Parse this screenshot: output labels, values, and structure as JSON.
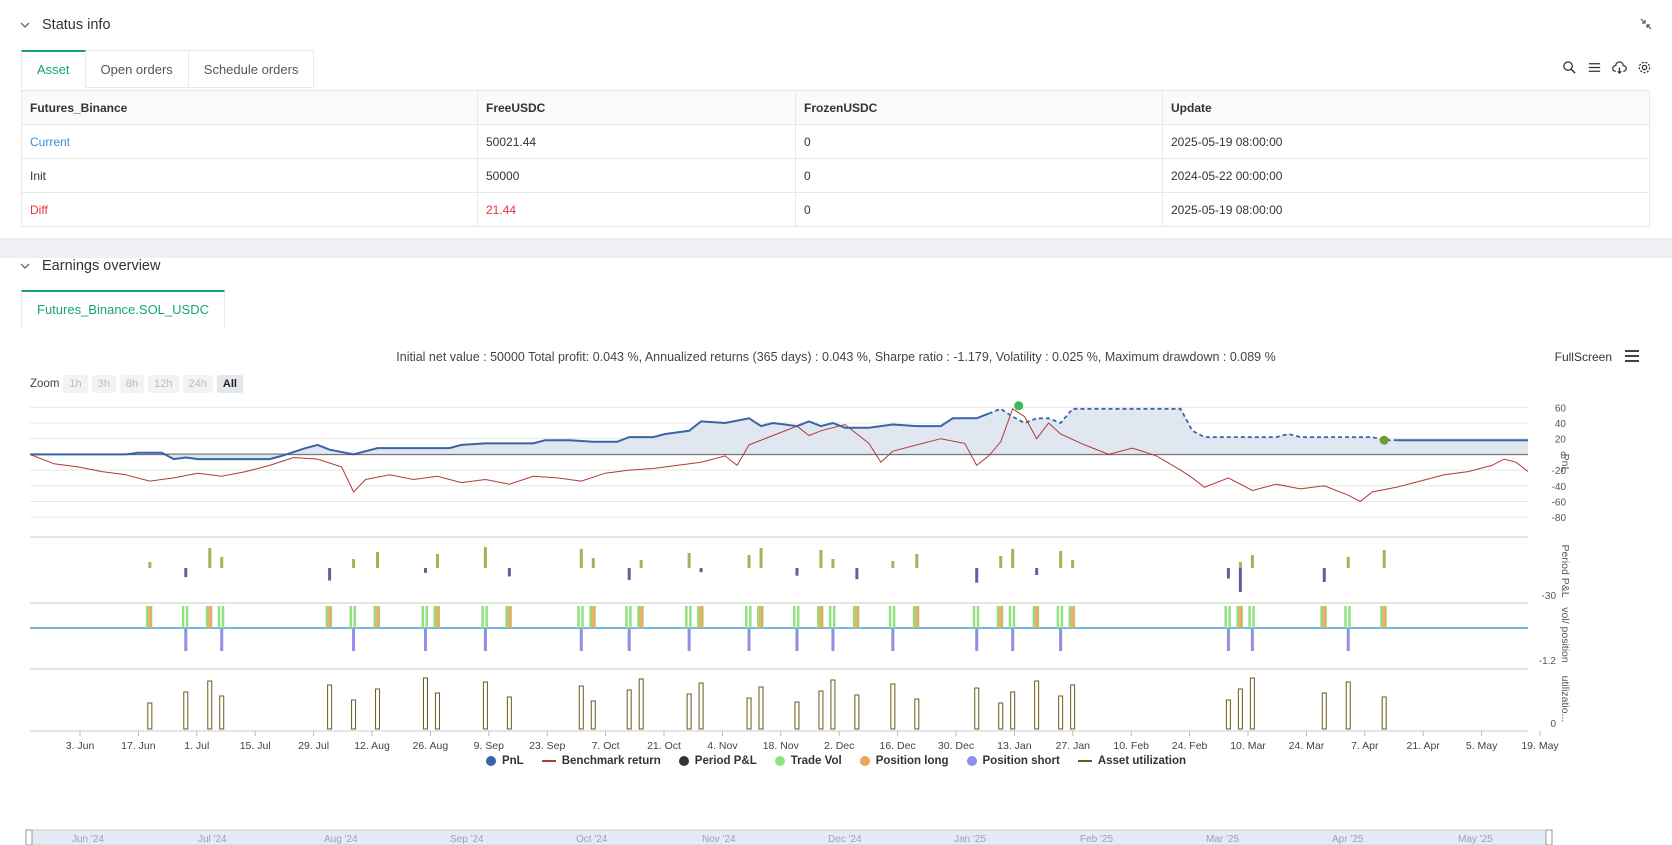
{
  "status_panel": {
    "title": "Status info",
    "tabs": [
      "Asset",
      "Open orders",
      "Schedule orders"
    ],
    "columns": [
      "Futures_Binance",
      "FreeUSDC",
      "FrozenUSDC",
      "Update"
    ],
    "rows": [
      {
        "name": "Current",
        "free": "50021.44",
        "frozen": "0",
        "update": "2025-05-19 08:00:00"
      },
      {
        "name": "Init",
        "free": "50000",
        "frozen": "0",
        "update": "2024-05-22 00:00:00"
      },
      {
        "name": "Diff",
        "free": "21.44",
        "frozen": "0",
        "update": "2025-05-19 08:00:00"
      }
    ]
  },
  "earnings_panel": {
    "title": "Earnings overview",
    "tab": "Futures_Binance.SOL_USDC",
    "summary": "Initial net value : 50000 Total profit: 0.043 %, Annualized returns (365 days) : 0.043 %, Sharpe ratio : -1.179, Volatility : 0.025 %, Maximum drawdown : 0.089 %",
    "fullscreen": "FullScreen",
    "zoom_label": "Zoom",
    "zoom_options": [
      "1h",
      "3h",
      "8h",
      "12h",
      "24h",
      "All"
    ],
    "legend": [
      "PnL",
      "Benchmark return",
      "Period P&L",
      "Trade Vol",
      "Position long",
      "Position short",
      "Asset utilization"
    ]
  },
  "chart_data": {
    "type": "line",
    "title": "Earnings overview",
    "x_ticks": [
      "3. Jun",
      "17. Jun",
      "1. Jul",
      "15. Jul",
      "29. Jul",
      "12. Aug",
      "26. Aug",
      "9. Sep",
      "23. Sep",
      "7. Oct",
      "21. Oct",
      "4. Nov",
      "18. Nov",
      "2. Dec",
      "16. Dec",
      "30. Dec",
      "13. Jan",
      "27. Jan",
      "10. Feb",
      "24. Feb",
      "10. Mar",
      "24. Mar",
      "7. Apr",
      "21. Apr",
      "5. May",
      "19. May"
    ],
    "navigator_ticks": [
      "Jun '24",
      "Jul '24",
      "Aug '24",
      "Sep '24",
      "Oct '24",
      "Nov '24",
      "Dec '24",
      "Jan '25",
      "Feb '25",
      "Mar '25",
      "Apr '25",
      "May '25"
    ],
    "pnl_axis": {
      "label": "PnL",
      "ticks": [
        "60",
        "40",
        "20",
        "0",
        "-20",
        "-40",
        "-60",
        "-80"
      ],
      "ylim": [
        -90,
        68
      ]
    },
    "period_axis": {
      "label": "Period P&L",
      "ticks": [
        "-30"
      ]
    },
    "vol_axis": {
      "label": "vol/ position",
      "ticks": [
        "-1.2"
      ]
    },
    "util_axis": {
      "label": "utilizatio...",
      "ticks": [
        "0"
      ]
    },
    "series": [
      {
        "name": "PnL",
        "color": "#3a64a6",
        "points": [
          [
            0,
            0
          ],
          [
            8,
            0
          ],
          [
            9,
            2
          ],
          [
            11,
            2
          ],
          [
            12,
            -6
          ],
          [
            13,
            -4
          ],
          [
            14,
            -6
          ],
          [
            20,
            -6
          ],
          [
            21,
            -2
          ],
          [
            23,
            8
          ],
          [
            24,
            12
          ],
          [
            25,
            6
          ],
          [
            27,
            0
          ],
          [
            28,
            4
          ],
          [
            29,
            8
          ],
          [
            35,
            8
          ],
          [
            36,
            12
          ],
          [
            38,
            14
          ],
          [
            42,
            14
          ],
          [
            43,
            18
          ],
          [
            45,
            18
          ],
          [
            47,
            16
          ],
          [
            49,
            16
          ],
          [
            50,
            22
          ],
          [
            52,
            22
          ],
          [
            53,
            26
          ],
          [
            55,
            30
          ],
          [
            56,
            42
          ],
          [
            58,
            40
          ],
          [
            60,
            46
          ],
          [
            61,
            36
          ],
          [
            62,
            40
          ],
          [
            64,
            36
          ],
          [
            65,
            42
          ],
          [
            66,
            36
          ],
          [
            67,
            40
          ],
          [
            68,
            34
          ],
          [
            70,
            34
          ],
          [
            72,
            38
          ],
          [
            74,
            36
          ],
          [
            76,
            36
          ],
          [
            77,
            46
          ],
          [
            79,
            46
          ],
          [
            80,
            52
          ]
        ]
      },
      {
        "name": "PnL (dashed)",
        "color": "#3a64a6",
        "points": [
          [
            80,
            52
          ],
          [
            81,
            58
          ],
          [
            82,
            48
          ],
          [
            83,
            40
          ],
          [
            84,
            46
          ],
          [
            85,
            46
          ],
          [
            86,
            40
          ],
          [
            87,
            58
          ],
          [
            96,
            58
          ],
          [
            97,
            30
          ],
          [
            98,
            22
          ],
          [
            104,
            22
          ],
          [
            105,
            26
          ],
          [
            106,
            22
          ],
          [
            112,
            22
          ],
          [
            113,
            18
          ],
          [
            114,
            18
          ]
        ]
      },
      {
        "name": "PnL (solid tail)",
        "color": "#3a64a6",
        "points": [
          [
            114,
            18
          ],
          [
            125,
            18
          ]
        ]
      },
      {
        "name": "Benchmark return",
        "color": "#b03b36",
        "points": [
          [
            0,
            0
          ],
          [
            2,
            -12
          ],
          [
            4,
            -16
          ],
          [
            6,
            -22
          ],
          [
            8,
            -26
          ],
          [
            10,
            -34
          ],
          [
            12,
            -30
          ],
          [
            14,
            -24
          ],
          [
            16,
            -28
          ],
          [
            18,
            -22
          ],
          [
            20,
            -14
          ],
          [
            22,
            -4
          ],
          [
            24,
            -6
          ],
          [
            26,
            -16
          ],
          [
            27,
            -48
          ],
          [
            28,
            -32
          ],
          [
            30,
            -26
          ],
          [
            32,
            -32
          ],
          [
            34,
            -28
          ],
          [
            36,
            -36
          ],
          [
            38,
            -32
          ],
          [
            40,
            -38
          ],
          [
            42,
            -28
          ],
          [
            44,
            -30
          ],
          [
            46,
            -34
          ],
          [
            48,
            -24
          ],
          [
            50,
            -20
          ],
          [
            52,
            -18
          ],
          [
            54,
            -14
          ],
          [
            56,
            -10
          ],
          [
            58,
            -2
          ],
          [
            59,
            -14
          ],
          [
            60,
            12
          ],
          [
            62,
            24
          ],
          [
            64,
            36
          ],
          [
            65,
            24
          ],
          [
            66,
            30
          ],
          [
            68,
            38
          ],
          [
            70,
            14
          ],
          [
            71,
            -10
          ],
          [
            72,
            4
          ],
          [
            74,
            12
          ],
          [
            76,
            20
          ],
          [
            78,
            14
          ],
          [
            79,
            -14
          ],
          [
            80,
            -2
          ],
          [
            81,
            16
          ],
          [
            82,
            58
          ],
          [
            83,
            48
          ],
          [
            84,
            20
          ],
          [
            85,
            40
          ],
          [
            86,
            26
          ],
          [
            88,
            12
          ],
          [
            90,
            0
          ],
          [
            92,
            8
          ],
          [
            94,
            -2
          ],
          [
            96,
            -20
          ],
          [
            97,
            -30
          ],
          [
            98,
            -42
          ],
          [
            100,
            -30
          ],
          [
            102,
            -46
          ],
          [
            104,
            -38
          ],
          [
            106,
            -44
          ],
          [
            108,
            -40
          ],
          [
            110,
            -52
          ],
          [
            111,
            -60
          ],
          [
            112,
            -48
          ],
          [
            114,
            -42
          ],
          [
            116,
            -34
          ],
          [
            118,
            -26
          ],
          [
            120,
            -22
          ],
          [
            122,
            -14
          ],
          [
            123,
            -6
          ],
          [
            124,
            -10
          ],
          [
            125,
            -22
          ]
        ]
      }
    ]
  }
}
